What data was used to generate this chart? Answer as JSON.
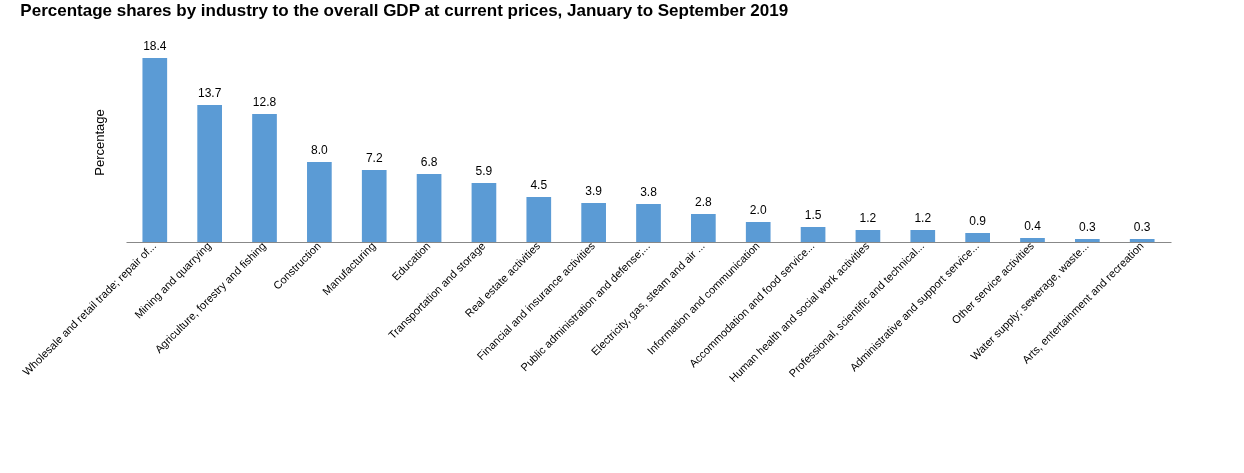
{
  "chart_data": {
    "type": "bar",
    "title": "Percentage shares by industry to the overall GDP at current prices, January to September 2019",
    "ylabel": "Percentage",
    "categories": [
      "Wholesale and retail trade; repair of...",
      "Mining and quarrying",
      "Agriculture, forestry and fishing",
      "Construction",
      "Manufacturing",
      "Education",
      "Transportation and storage",
      "Real estate activities",
      "Financial and insurance activities",
      "Public administration and defense;...",
      "Electricity, gas, steam and air ...",
      "Information and communication",
      "Accommodation and food service...",
      "Human health and social work activities",
      "Professional, scientific and technical...",
      "Administrative and support service...",
      "Other service activities",
      "Water supply; sewerage, waste...",
      "Arts, entertainment and recreation"
    ],
    "values": [
      18.4,
      13.7,
      12.8,
      8.0,
      7.2,
      6.8,
      5.9,
      4.5,
      3.9,
      3.8,
      2.8,
      2.0,
      1.5,
      1.2,
      1.2,
      0.9,
      0.4,
      0.3,
      0.3
    ],
    "value_labels": [
      "18.4",
      "13.7",
      "12.8",
      "8.0",
      "7.2",
      "6.8",
      "5.9",
      "4.5",
      "3.9",
      "3.8",
      "2.8",
      "2.0",
      "1.5",
      "1.2",
      "1.2",
      "0.9",
      "0.4",
      "0.3",
      "0.3"
    ],
    "color": "#5b9bd5",
    "tick_labels": "x",
    "grid": false
  }
}
